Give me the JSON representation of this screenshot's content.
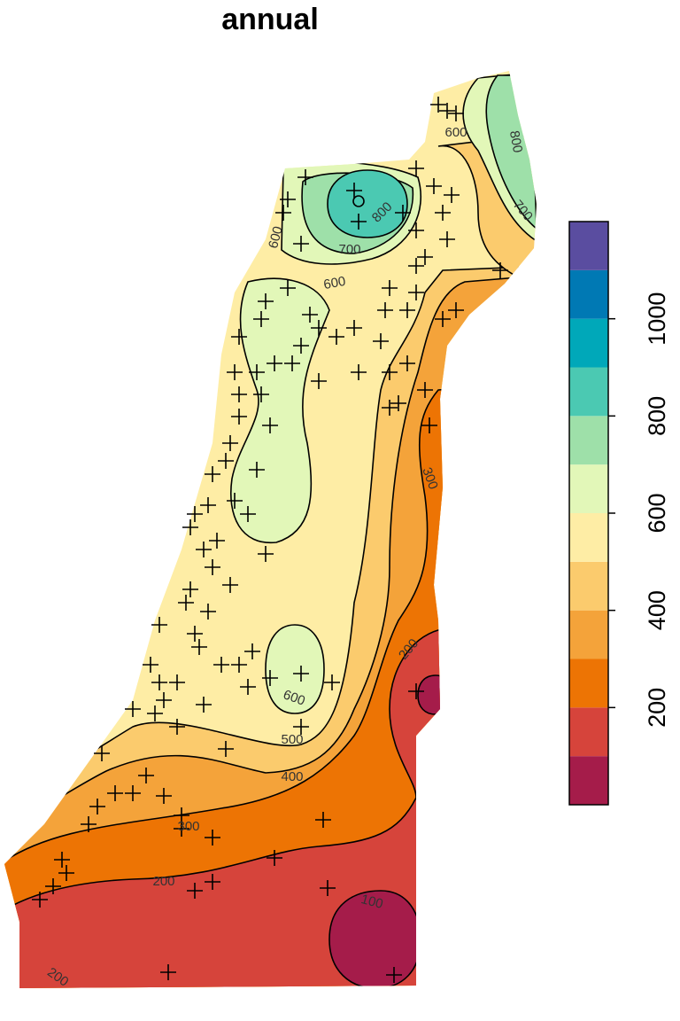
{
  "title": "annual",
  "legend": {
    "lim": [
      0,
      1200
    ],
    "breaks": [
      0,
      100,
      200,
      300,
      400,
      500,
      600,
      700,
      800,
      900,
      1000,
      1100,
      1200
    ],
    "colors": [
      "#a51c4a",
      "#d6443b",
      "#ed7404",
      "#f4a33a",
      "#fbcb6d",
      "#feeda5",
      "#e2f7b8",
      "#9ee0a9",
      "#4bc9b2",
      "#00a8b9",
      "#0079b4",
      "#5a4da0"
    ],
    "ticks": [
      200,
      400,
      600,
      800,
      1000
    ]
  },
  "contour_labels": [
    600,
    700,
    800,
    600,
    600,
    800,
    700,
    300,
    200,
    600,
    500,
    400,
    300,
    200,
    100,
    200
  ]
}
